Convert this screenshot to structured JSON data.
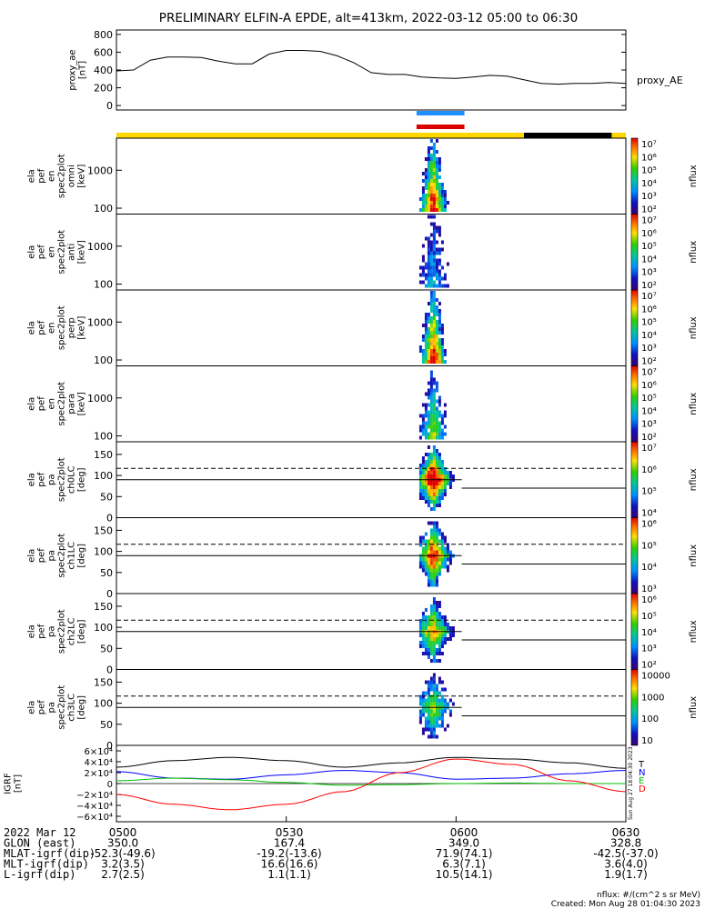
{
  "title": "PRELIMINARY ELFIN-A EPDE, alt=413km, 2022-03-12 05:00 to 06:30",
  "proxy_ae": {
    "ylabel_lines": [
      "proxy_ae",
      "[nT]"
    ],
    "yticks": [
      "800",
      "600",
      "400",
      "200",
      "0"
    ],
    "ytick_values": [
      800,
      600,
      400,
      200,
      0
    ],
    "ylim": [
      -50,
      850
    ],
    "legend": "proxy_AE"
  },
  "spectrogram_panels": [
    {
      "ylabel_lines": [
        "ela",
        "pef",
        "en",
        "spec2plot",
        "omni",
        "[keV]"
      ],
      "yticks": [
        "1000",
        "100"
      ],
      "colorbar_labels": [
        "10⁷",
        "10⁶",
        "10⁵",
        "10⁴",
        "10³",
        "10²"
      ],
      "colorbar_title": "nflux",
      "intensity": 1.0
    },
    {
      "ylabel_lines": [
        "ela",
        "pef",
        "en",
        "spec2plot",
        "anti",
        "[keV]"
      ],
      "yticks": [
        "1000",
        "100"
      ],
      "colorbar_labels": [
        "10⁷",
        "10⁶",
        "10⁵",
        "10⁴",
        "10³",
        "10²"
      ],
      "colorbar_title": "nflux",
      "intensity": 0.35
    },
    {
      "ylabel_lines": [
        "ela",
        "pef",
        "en",
        "spec2plot",
        "perp",
        "[keV]"
      ],
      "yticks": [
        "1000",
        "100"
      ],
      "colorbar_labels": [
        "10⁷",
        "10⁶",
        "10⁵",
        "10⁴",
        "10³",
        "10²"
      ],
      "colorbar_title": "nflux",
      "intensity": 1.0
    },
    {
      "ylabel_lines": [
        "ela",
        "pef",
        "en",
        "spec2plot",
        "para",
        "[keV]"
      ],
      "yticks": [
        "1000",
        "100"
      ],
      "colorbar_labels": [
        "10⁷",
        "10⁶",
        "10⁵",
        "10⁴",
        "10³",
        "10²"
      ],
      "colorbar_title": "nflux",
      "intensity": 0.65
    }
  ],
  "pitch_angle_panels": [
    {
      "ylabel_lines": [
        "ela",
        "pef",
        "pa",
        "spec2plot",
        "ch0LC",
        "[deg]"
      ],
      "yticks": [
        "150",
        "100",
        "50",
        "0"
      ],
      "colorbar_labels": [
        "10⁷",
        "10⁶",
        "10⁵",
        "10⁴"
      ],
      "colorbar_title": "nflux",
      "intensity": 1.0
    },
    {
      "ylabel_lines": [
        "ela",
        "pef",
        "pa",
        "spec2plot",
        "ch1LC",
        "[deg]"
      ],
      "yticks": [
        "150",
        "100",
        "50",
        "0"
      ],
      "colorbar_labels": [
        "10⁶",
        "10⁵",
        "10⁴",
        "10³"
      ],
      "colorbar_title": "nflux",
      "intensity": 0.85
    },
    {
      "ylabel_lines": [
        "ela",
        "pef",
        "pa",
        "spec2plot",
        "ch2LC",
        "[deg]"
      ],
      "yticks": [
        "150",
        "100",
        "50",
        "0"
      ],
      "colorbar_labels": [
        "10⁶",
        "10⁵",
        "10⁴",
        "10³",
        "10²"
      ],
      "colorbar_title": "nflux",
      "intensity": 0.7
    },
    {
      "ylabel_lines": [
        "ela",
        "pef",
        "pa",
        "spec2plot",
        "ch3LC",
        "[deg]"
      ],
      "yticks": [
        "150",
        "100",
        "50",
        "0"
      ],
      "colorbar_labels": [
        "10000",
        "1000",
        "100",
        "10"
      ],
      "colorbar_title": "nflux",
      "intensity": 0.55
    }
  ],
  "igrf_panel": {
    "ylabel_lines": [
      "IGRF",
      "[nT]"
    ],
    "yticks": [
      "6×10⁴",
      "4×10⁴",
      "2×10⁴",
      "0",
      "−2×10⁴",
      "−4×10⁴",
      "−6×10⁴"
    ],
    "legend": [
      "T",
      "N",
      "E",
      "D"
    ],
    "legend_colors": [
      "#000000",
      "#0000ff",
      "#00c000",
      "#ff0000"
    ],
    "side_stamp": "Sun Aug 27 18:04:30 2023"
  },
  "bottom_axis": {
    "rows": [
      {
        "label": "2022 Mar 12",
        "values": [
          "0500",
          "0530",
          "0600",
          "0630"
        ]
      },
      {
        "label": "GLON (east)",
        "values": [
          "350.0",
          "167.4",
          "349.0",
          "328.8"
        ]
      },
      {
        "label": "MLAT-igrf(dip)",
        "values": [
          "-52.3(-49.6)",
          "-19.2(-13.6)",
          "71.9(74.1)",
          "-42.5(-37.0)"
        ]
      },
      {
        "label": "MLT-igrf(dip)",
        "values": [
          "3.2(3.5)",
          "16.6(16.6)",
          "6.3(7.1)",
          "3.6(4.0)"
        ]
      },
      {
        "label": "L-igrf(dip)",
        "values": [
          "2.7(2.5)",
          "1.1(1.1)",
          "10.5(14.1)",
          "1.9(1.7)"
        ]
      }
    ]
  },
  "footer": {
    "units": "nflux: #/(cm^2 s sr MeV)",
    "created": "Created: Mon Aug 28 01:04:30 2023"
  },
  "colors": {
    "sunlit_bar": "#ffd700",
    "eclipse_bar": "#000000",
    "science_zone_blue": "#1e90ff",
    "science_zone_red": "#dd0000"
  },
  "chart_data": {
    "type": "line",
    "title": "PRELIMINARY ELFIN-A EPDE, alt=413km, 2022-03-12 05:00 to 06:30",
    "x_unit": "UT minutes since 05:00",
    "xlim": [
      0,
      90
    ],
    "series": [
      {
        "name": "proxy_AE",
        "x": [
          0,
          3,
          6,
          9,
          12,
          15,
          18,
          21,
          24,
          27,
          30,
          33,
          36,
          39,
          42,
          45,
          48,
          51,
          54,
          57,
          60,
          63,
          66,
          69,
          72,
          75,
          78,
          81,
          84,
          87,
          90
        ],
        "y": [
          390,
          400,
          510,
          545,
          545,
          540,
          500,
          470,
          470,
          580,
          620,
          620,
          610,
          560,
          480,
          370,
          350,
          350,
          320,
          310,
          305,
          320,
          340,
          330,
          290,
          250,
          240,
          250,
          250,
          260,
          250
        ]
      }
    ],
    "igrf_series": [
      {
        "name": "T",
        "x": [
          0,
          10,
          20,
          30,
          40,
          50,
          60,
          70,
          80,
          90
        ],
        "y": [
          30000,
          42000,
          48000,
          42000,
          30000,
          38000,
          48000,
          45000,
          38000,
          28000
        ]
      },
      {
        "name": "N",
        "x": [
          0,
          10,
          20,
          30,
          40,
          50,
          60,
          70,
          80,
          90
        ],
        "y": [
          22000,
          10000,
          8000,
          16000,
          24000,
          20000,
          8000,
          10000,
          18000,
          24000
        ]
      },
      {
        "name": "E",
        "x": [
          0,
          10,
          20,
          30,
          40,
          50,
          60,
          70,
          80,
          90
        ],
        "y": [
          5000,
          10000,
          7000,
          2000,
          -3000,
          -2000,
          0,
          1000,
          0,
          0
        ]
      },
      {
        "name": "D",
        "x": [
          0,
          10,
          20,
          30,
          40,
          50,
          60,
          70,
          80,
          90
        ],
        "y": [
          -20000,
          -38000,
          -48000,
          -38000,
          -15000,
          20000,
          45000,
          35000,
          5000,
          -15000
        ]
      }
    ],
    "energy_ylim_keV": [
      70,
      7000
    ],
    "pitch_angle_ylim_deg": [
      0,
      180
    ],
    "loss_cone_lines_deg": {
      "dashed": 117,
      "solid": 90,
      "solid_after_event": 70
    },
    "event_window_minutes": [
      53.5,
      61.0
    ],
    "sunlit_until_minutes": 72,
    "eclipse_window_minutes": [
      72,
      87.5
    ],
    "science_zone_marks_minutes": [
      53.5,
      61.0
    ]
  }
}
